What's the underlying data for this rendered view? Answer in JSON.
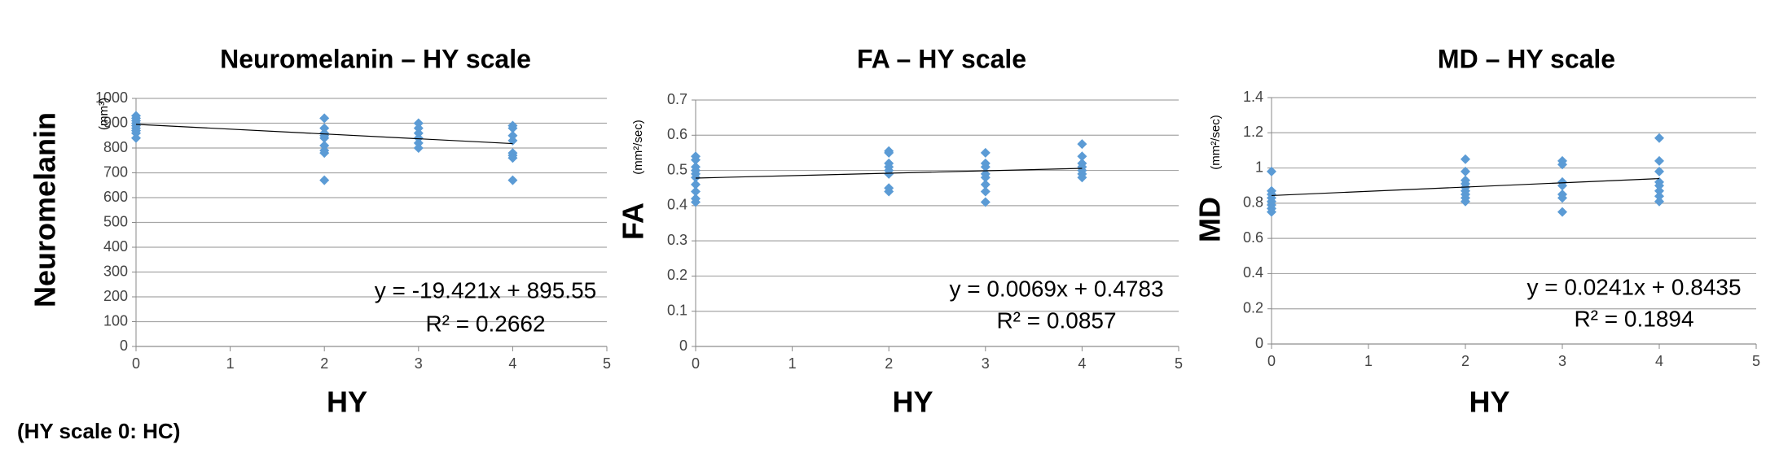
{
  "chart_data": [
    {
      "type": "scatter",
      "title": "Neuromelanin – HY scale",
      "ylabel": "Neuromelanin",
      "yunit": "(mm³)",
      "xlabel": "HY",
      "x": [
        0,
        0,
        0,
        0,
        0,
        0,
        0,
        0,
        0,
        2,
        2,
        2,
        2,
        2,
        2,
        2,
        2,
        2,
        3,
        3,
        3,
        3,
        3,
        3,
        4,
        4,
        4,
        4,
        4,
        4,
        4,
        4
      ],
      "values": [
        930,
        920,
        910,
        900,
        890,
        880,
        870,
        860,
        840,
        920,
        880,
        860,
        850,
        840,
        810,
        790,
        780,
        670,
        900,
        880,
        860,
        840,
        820,
        800,
        890,
        880,
        850,
        830,
        780,
        770,
        760,
        670
      ],
      "color": "#5b9bd5",
      "xlim": [
        0,
        5
      ],
      "xticks": [
        0,
        1,
        2,
        3,
        4,
        5
      ],
      "ylim": [
        0,
        1000
      ],
      "yticks": [
        0,
        100,
        200,
        300,
        400,
        500,
        600,
        700,
        800,
        900,
        1000
      ],
      "grid": true,
      "trendline": {
        "slope": -19.421,
        "intercept": 895.55,
        "color": "#000000"
      },
      "equation": "y = -19.421x + 895.55",
      "r2": "R² = 0.2662"
    },
    {
      "type": "scatter",
      "title": "FA – HY scale",
      "ylabel": "FA",
      "yunit": "(mm²/sec)",
      "xlabel": "HY",
      "x": [
        0,
        0,
        0,
        0,
        0,
        0,
        0,
        0,
        0,
        0,
        2,
        2,
        2,
        2,
        2,
        2,
        2,
        2,
        3,
        3,
        3,
        3,
        3,
        3,
        3,
        3,
        4,
        4,
        4,
        4,
        4,
        4,
        4
      ],
      "values": [
        0.54,
        0.53,
        0.51,
        0.5,
        0.49,
        0.48,
        0.46,
        0.44,
        0.42,
        0.41,
        0.555,
        0.55,
        0.52,
        0.51,
        0.5,
        0.49,
        0.45,
        0.44,
        0.55,
        0.52,
        0.51,
        0.49,
        0.48,
        0.46,
        0.44,
        0.41,
        0.575,
        0.54,
        0.52,
        0.51,
        0.5,
        0.49,
        0.48
      ],
      "color": "#5b9bd5",
      "xlim": [
        0,
        5
      ],
      "xticks": [
        0,
        1,
        2,
        3,
        4,
        5
      ],
      "ylim": [
        0,
        0.7
      ],
      "yticks": [
        0,
        0.1,
        0.2,
        0.3,
        0.4,
        0.5,
        0.6,
        0.7
      ],
      "grid": true,
      "trendline": {
        "slope": 0.0069,
        "intercept": 0.4783,
        "color": "#000000"
      },
      "equation": "y = 0.0069x + 0.4783",
      "r2": "R² = 0.0857"
    },
    {
      "type": "scatter",
      "title": "MD – HY scale",
      "ylabel": "MD",
      "yunit": "(mm²/sec)",
      "xlabel": "HY",
      "x": [
        0,
        0,
        0,
        0,
        0,
        0,
        0,
        0,
        2,
        2,
        2,
        2,
        2,
        2,
        2,
        2,
        2,
        3,
        3,
        3,
        3,
        3,
        3,
        3,
        4,
        4,
        4,
        4,
        4,
        4,
        4,
        4
      ],
      "values": [
        0.98,
        0.87,
        0.85,
        0.83,
        0.81,
        0.79,
        0.77,
        0.75,
        1.05,
        0.98,
        0.93,
        0.91,
        0.89,
        0.87,
        0.85,
        0.83,
        0.81,
        1.04,
        1.02,
        0.92,
        0.9,
        0.85,
        0.83,
        0.75,
        1.17,
        1.04,
        0.98,
        0.92,
        0.9,
        0.87,
        0.84,
        0.81
      ],
      "color": "#5b9bd5",
      "xlim": [
        0,
        5
      ],
      "xticks": [
        0,
        1,
        2,
        3,
        4,
        5
      ],
      "ylim": [
        0,
        1.4
      ],
      "yticks": [
        0,
        0.2,
        0.4,
        0.6,
        0.8,
        1,
        1.2,
        1.4
      ],
      "grid": true,
      "trendline": {
        "slope": 0.0241,
        "intercept": 0.8435,
        "color": "#000000"
      },
      "equation": "y = 0.0241x + 0.8435",
      "r2": "R² = 0.1894"
    }
  ],
  "footnote": "(HY scale 0: HC)"
}
